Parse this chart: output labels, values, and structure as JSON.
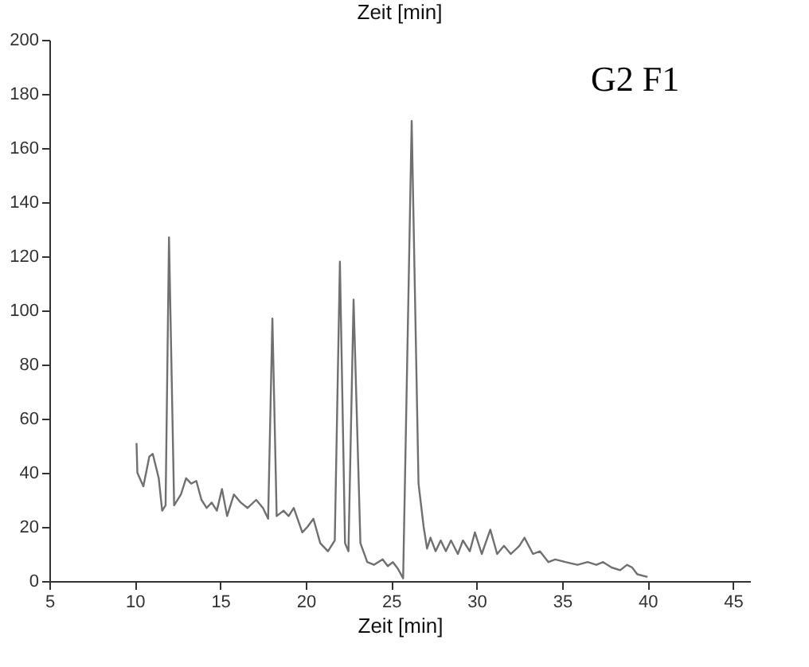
{
  "chart_data": {
    "type": "line",
    "title": "Zeit [min]",
    "xlabel": "Zeit [min]",
    "annotations": [
      "G2 F1"
    ],
    "x": [
      10.1,
      10.15,
      10.5,
      10.85,
      11.05,
      11.4,
      11.6,
      11.8,
      12.0,
      12.3,
      12.7,
      13.0,
      13.3,
      13.6,
      13.9,
      14.2,
      14.5,
      14.8,
      15.1,
      15.4,
      15.8,
      16.2,
      16.6,
      17.1,
      17.5,
      17.8,
      18.05,
      18.3,
      18.7,
      19.0,
      19.3,
      19.8,
      20.1,
      20.45,
      20.85,
      21.3,
      21.7,
      22.0,
      22.3,
      22.5,
      22.8,
      23.2,
      23.6,
      24.0,
      24.5,
      24.8,
      25.1,
      25.4,
      25.7,
      26.2,
      26.6,
      26.9,
      27.1,
      27.3,
      27.6,
      27.9,
      28.2,
      28.5,
      28.9,
      29.2,
      29.6,
      29.9,
      30.3,
      30.8,
      31.2,
      31.6,
      32.0,
      32.5,
      32.8,
      33.3,
      33.7,
      34.2,
      34.6,
      35.2,
      35.9,
      36.5,
      37.0,
      37.4,
      37.9,
      38.4,
      38.8,
      39.1,
      39.4,
      40.0
    ],
    "series": [
      {
        "color": "#707070",
        "values": [
          51,
          40,
          35,
          46,
          47,
          38,
          26,
          28,
          127,
          28,
          32,
          38,
          36,
          37,
          30,
          27,
          29,
          26,
          34,
          24,
          32,
          29,
          27,
          30,
          27,
          23,
          97,
          24,
          26,
          24,
          27,
          18,
          20,
          23,
          14,
          11,
          15,
          118,
          14,
          11,
          104,
          14,
          7,
          6,
          8,
          5.5,
          7,
          4.5,
          1,
          170,
          36,
          20,
          12,
          16,
          11,
          15,
          11,
          15,
          10,
          15,
          11,
          18,
          10,
          19,
          10,
          13,
          10,
          13,
          16,
          10,
          11,
          7,
          8,
          7,
          6,
          7,
          6,
          7,
          5,
          4,
          6,
          5,
          2.5,
          1.5
        ]
      }
    ],
    "xlim": [
      5,
      46
    ],
    "xticks": [
      5,
      10,
      15,
      20,
      25,
      30,
      35,
      40,
      45
    ],
    "ylim": [
      0,
      200
    ],
    "yticks": [
      0,
      20,
      40,
      60,
      80,
      100,
      120,
      140,
      160,
      180,
      200
    ],
    "grid": false,
    "marker": "none",
    "line_style": "solid"
  }
}
